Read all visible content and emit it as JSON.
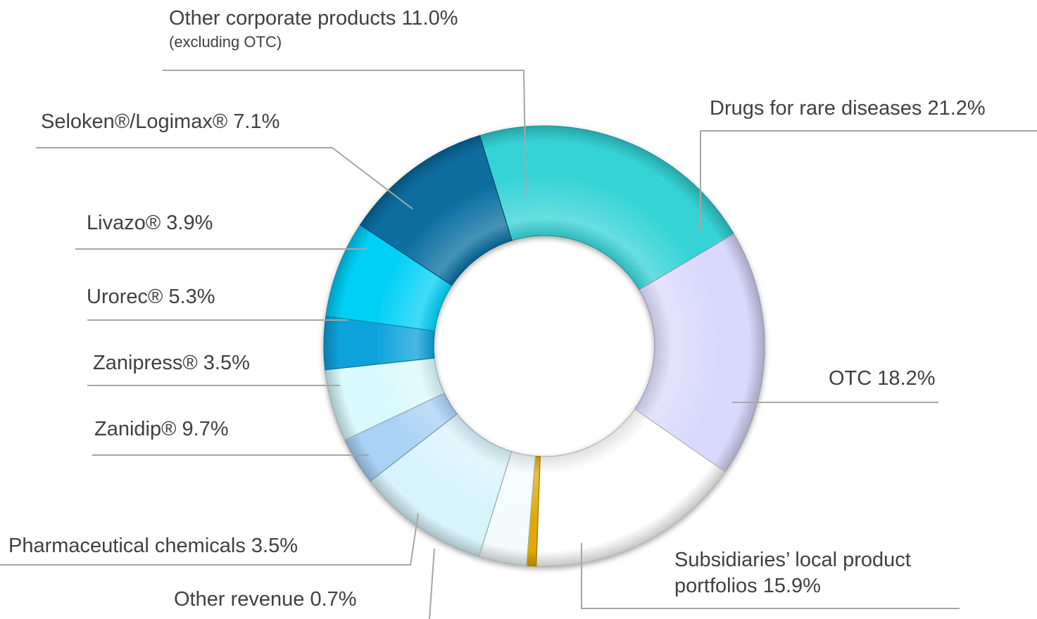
{
  "chart_data": {
    "type": "pie",
    "donut": true,
    "title": "",
    "slices": [
      {
        "label": "Drugs for rare diseases",
        "display": "Drugs for rare diseases 21.2%",
        "value": 21.2,
        "color": "#35d3d6"
      },
      {
        "label": "OTC",
        "display": "OTC 18.2%",
        "value": 18.2,
        "color": "#d9d9fb"
      },
      {
        "label": "Subsidiaries’ local product portfolios",
        "display_lines": [
          "Subsidiaries’ local product",
          "portfolios  15.9%"
        ],
        "value": 15.9,
        "color": "#ffffff"
      },
      {
        "label": "Other revenue",
        "display": "Other revenue 0.7%",
        "value": 0.7,
        "color": "#e3a800"
      },
      {
        "label": "Pharmaceutical chemicals",
        "display": "Pharmaceutical chemicals  3.5%",
        "value": 3.5,
        "color": "#f3fbfd"
      },
      {
        "label": "Zanidip®",
        "display": "Zanidip® 9.7%",
        "value": 9.7,
        "color": "#d8f4fb"
      },
      {
        "label": "Zanipress®",
        "display": "Zanipress® 3.5%",
        "value": 3.5,
        "color": "#a9d2f5"
      },
      {
        "label": "Urorec®",
        "display": "Urorec® 5.3%",
        "value": 5.3,
        "color": "#d9f9fc"
      },
      {
        "label": "Livazo®",
        "display": "Livazo® 3.9%",
        "value": 3.9,
        "color": "#0aa2db"
      },
      {
        "label": "Seloken®/Logimax®",
        "display": "Seloken®/Logimax® 7.1%",
        "value": 7.1,
        "color": "#00d0f6"
      },
      {
        "label": "Other corporate products",
        "display": "Other corporate products 11.0%",
        "sub": "(excluding OTC)",
        "value": 11.0,
        "color": "#086d9f"
      }
    ],
    "legend": "none"
  }
}
